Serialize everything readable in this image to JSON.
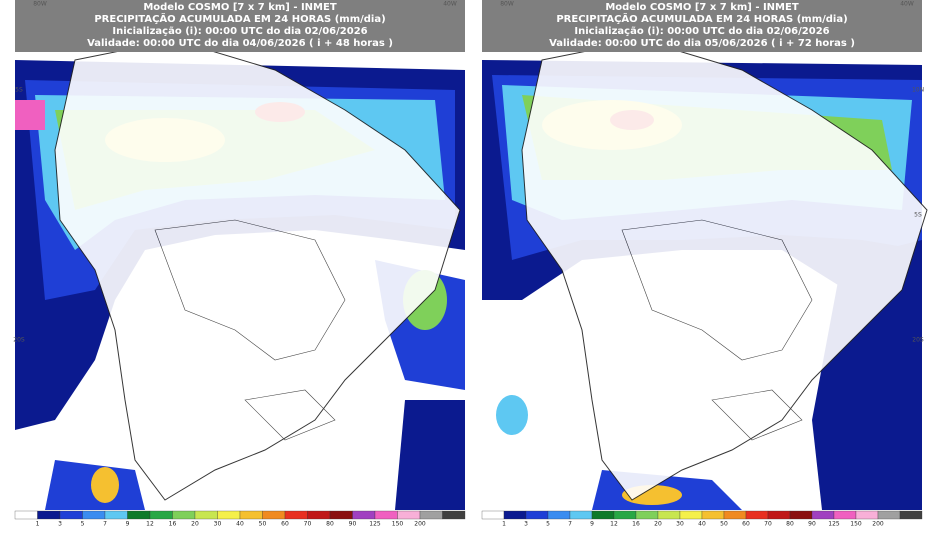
{
  "panels": [
    {
      "header": {
        "model": "Modelo COSMO [7 x 7 km] - INMET",
        "title": "PRECIPITAÇÃO ACUMULADA EM 24 HORAS (mm/dia)",
        "init": "Inicialização (i): 00:00 UTC do dia 02/06/2026",
        "valid": "Validade: 00:00 UTC do dia 04/06/2026 ( i + 48 horas )"
      },
      "lon_labels": [
        "80W",
        "40W"
      ],
      "lat_labels": [
        "5S",
        "20S"
      ]
    },
    {
      "header": {
        "model": "Modelo COSMO [7 x 7 km] - INMET",
        "title": "PRECIPITAÇÃO ACUMULADA EM 24 HORAS (mm/dia)",
        "init": "Inicialização (i): 00:00 UTC do dia 02/06/2026",
        "valid": "Validade: 00:00 UTC do dia 05/06/2026 ( i + 72 horas )"
      },
      "lon_labels": [
        "80W",
        "40W"
      ],
      "lat_labels": [
        "10N",
        "5S",
        "20S"
      ]
    }
  ],
  "colorbar": {
    "labels": [
      "1",
      "3",
      "5",
      "7",
      "9",
      "12",
      "16",
      "20",
      "30",
      "40",
      "50",
      "60",
      "70",
      "80",
      "90",
      "125",
      "150",
      "200"
    ],
    "colors": [
      "#ffffff",
      "#0b1a8f",
      "#1f3fd6",
      "#3a8cf0",
      "#5ec8f2",
      "#0f7a2a",
      "#28a745",
      "#7fd05a",
      "#c8e650",
      "#f5f04a",
      "#f5c030",
      "#f08a20",
      "#e83020",
      "#c01818",
      "#8a1010",
      "#a040c0",
      "#f060c0",
      "#f8b0d8",
      "#a0a0a0",
      "#404040"
    ]
  }
}
